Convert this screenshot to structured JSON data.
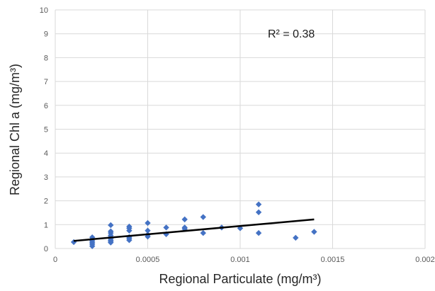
{
  "chart_data": {
    "type": "scatter",
    "xlabel": "Regional Particulate (mg/m³)",
    "ylabel": "Regional Chl a (mg/m³)",
    "xlim": [
      0,
      0.002
    ],
    "ylim": [
      0,
      10
    ],
    "x_ticks": [
      "0",
      "0.0005",
      "0.001",
      "0.0015",
      "0.002"
    ],
    "y_ticks": [
      "0",
      "1",
      "2",
      "3",
      "4",
      "5",
      "6",
      "7",
      "8",
      "9",
      "10"
    ],
    "grid": true,
    "marker_color": "#4472C4",
    "trendline_color": "#000000",
    "annotation": "R² = 0.38",
    "points": [
      [
        0.0001,
        0.27
      ],
      [
        0.0002,
        0.1
      ],
      [
        0.0002,
        0.18
      ],
      [
        0.0002,
        0.25
      ],
      [
        0.0002,
        0.32
      ],
      [
        0.0002,
        0.4
      ],
      [
        0.0002,
        0.47
      ],
      [
        0.0003,
        0.25
      ],
      [
        0.0003,
        0.3
      ],
      [
        0.0003,
        0.35
      ],
      [
        0.0003,
        0.42
      ],
      [
        0.0003,
        0.48
      ],
      [
        0.0003,
        0.55
      ],
      [
        0.0003,
        0.65
      ],
      [
        0.0003,
        0.72
      ],
      [
        0.0003,
        0.98
      ],
      [
        0.0004,
        0.35
      ],
      [
        0.0004,
        0.42
      ],
      [
        0.0004,
        0.48
      ],
      [
        0.0004,
        0.75
      ],
      [
        0.0004,
        0.85
      ],
      [
        0.0004,
        0.92
      ],
      [
        0.0005,
        0.5
      ],
      [
        0.0005,
        0.58
      ],
      [
        0.0005,
        0.75
      ],
      [
        0.0005,
        1.07
      ],
      [
        0.0006,
        0.6
      ],
      [
        0.0006,
        0.88
      ],
      [
        0.0007,
        0.82
      ],
      [
        0.0007,
        0.88
      ],
      [
        0.0007,
        1.22
      ],
      [
        0.0008,
        0.65
      ],
      [
        0.0008,
        1.32
      ],
      [
        0.0009,
        0.88
      ],
      [
        0.001,
        0.85
      ],
      [
        0.0011,
        0.65
      ],
      [
        0.0011,
        1.52
      ],
      [
        0.0011,
        1.85
      ],
      [
        0.0013,
        0.45
      ],
      [
        0.0014,
        0.7
      ]
    ],
    "trendline": [
      [
        0.0001,
        0.32
      ],
      [
        0.0014,
        1.22
      ]
    ]
  }
}
